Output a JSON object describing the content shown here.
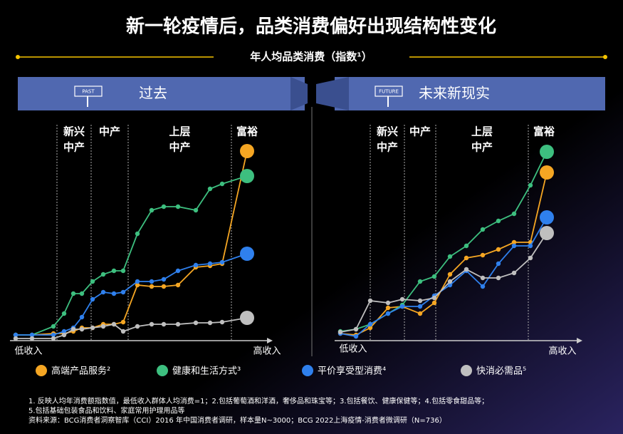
{
  "title": "新一轮疫情后，品类消费偏好出现结构性变化",
  "subtitle": "年人均品类消费（指数¹）",
  "chart_data": [
    {
      "type": "line",
      "title": "过去",
      "sign": "PAST",
      "x_low_label": "低收入",
      "x_high_label": "高收入",
      "segments": [
        [
          "新兴",
          "中产"
        ],
        [
          "中产"
        ],
        [
          "上层",
          "中产"
        ],
        [
          "富裕"
        ]
      ],
      "dividers": [
        58,
        106,
        158,
        303
      ],
      "xlim": [
        0,
        353
      ],
      "ylim": [
        0,
        300
      ],
      "x": [
        0,
        23,
        53,
        68,
        81,
        93,
        108,
        123,
        138,
        151,
        171,
        191,
        208,
        228,
        253,
        273,
        290,
        325
      ],
      "series": [
        {
          "name": "高端产品服务²",
          "color": "#f5a623",
          "values": [
            10,
            10,
            12,
            12,
            15,
            20,
            20,
            25,
            25,
            28,
            80,
            78,
            78,
            80,
            105,
            107,
            110,
            268
          ]
        },
        {
          "name": "健康和生活方式³",
          "color": "#3dbf7f",
          "values": [
            10,
            10,
            22,
            40,
            68,
            68,
            85,
            95,
            100,
            100,
            152,
            185,
            190,
            190,
            185,
            215,
            222,
            233
          ]
        },
        {
          "name": "平价享受型消费⁴",
          "color": "#2f80ed",
          "values": [
            10,
            10,
            10,
            15,
            20,
            35,
            60,
            70,
            68,
            70,
            85,
            85,
            88,
            100,
            108,
            110,
            112,
            124
          ]
        },
        {
          "name": "快消必需品⁵",
          "color": "#bfbfbf",
          "values": [
            5,
            5,
            5,
            10,
            18,
            18,
            20,
            22,
            25,
            15,
            22,
            25,
            25,
            25,
            27,
            27,
            28,
            34
          ]
        }
      ]
    },
    {
      "type": "line",
      "title": "未来新现实",
      "sign": "FUTURE",
      "x_low_label": "低收入",
      "x_high_label": "高收入",
      "segments": [
        [
          "新兴",
          "中产"
        ],
        [
          "中产"
        ],
        [
          "上层",
          "中产"
        ],
        [
          "富裕"
        ]
      ],
      "dividers": [
        42,
        90,
        134,
        264
      ],
      "xlim": [
        0,
        332
      ],
      "ylim": [
        0,
        300
      ],
      "x": [
        0,
        22,
        42,
        67,
        87,
        112,
        132,
        154,
        177,
        200,
        222,
        244,
        267,
        290
      ],
      "series": [
        {
          "color": "#f5a623",
          "values": [
            12,
            10,
            20,
            48,
            50,
            40,
            55,
            95,
            118,
            122,
            130,
            140,
            140,
            238
          ]
        },
        {
          "color": "#3dbf7f",
          "values": [
            15,
            18,
            25,
            40,
            52,
            85,
            92,
            120,
            135,
            158,
            170,
            180,
            220,
            267
          ]
        },
        {
          "color": "#2f80ed",
          "values": [
            12,
            8,
            25,
            40,
            50,
            50,
            65,
            80,
            100,
            78,
            110,
            135,
            135,
            175
          ]
        },
        {
          "color": "#bfbfbf",
          "values": [
            14,
            18,
            58,
            55,
            60,
            58,
            62,
            85,
            102,
            90,
            90,
            97,
            118,
            153
          ]
        }
      ]
    }
  ],
  "footnotes": [
    "1. 反映人均年消费额指数值，最低收入群体人均消费=1；2.包括葡萄酒和洋酒，奢侈品和珠宝等；3.包括餐饮、健康保健等；4.包括零食甜品等；",
    "5.包括基础包装食品和饮料、家庭常用护理用品等",
    "资料来源：BCG消费者洞察智库（CCI）2016 年中国消费者调研，样本量N~3000；BCG 2022上海疫情-消费者微调研（N=736）"
  ]
}
